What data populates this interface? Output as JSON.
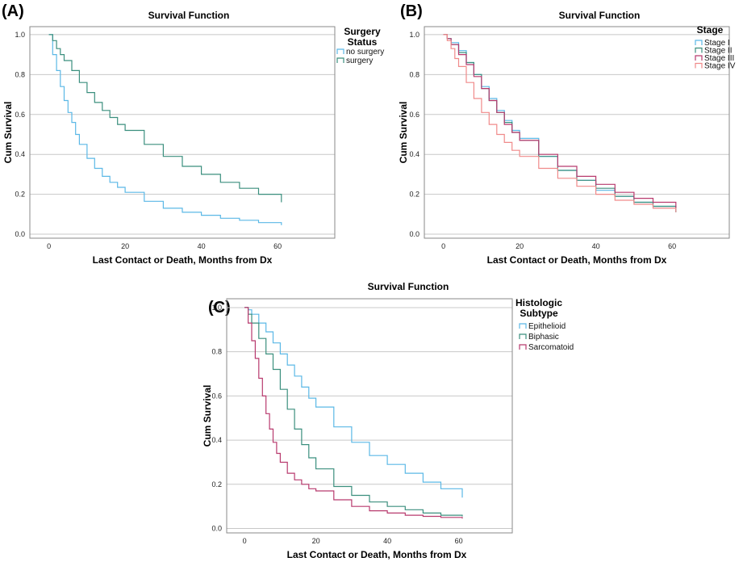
{
  "chart_data": [
    {
      "type": "line",
      "step": true,
      "panel_label": "(A)",
      "title": "Survival Function",
      "xlabel": "Last Contact or Death, Months from Dx",
      "ylabel": "Cum Survival",
      "xlim": [
        -5,
        75
      ],
      "ylim": [
        -0.02,
        1.04
      ],
      "x_ticks": [
        0,
        20,
        40,
        60
      ],
      "y_ticks": [
        0.0,
        0.2,
        0.4,
        0.6,
        0.8,
        1.0
      ],
      "y_tick_labels": [
        "0.0",
        "0.2",
        "0.4",
        "0.6",
        "0.8",
        "1.0"
      ],
      "grid": "horizontal",
      "legend_title": [
        "Surgery",
        "Status"
      ],
      "legend_position": "top-right-outside",
      "series": [
        {
          "name": "no surgery",
          "color": "#5bb8e6",
          "x": [
            0,
            1,
            2,
            3,
            4,
            5,
            6,
            7,
            8,
            10,
            12,
            14,
            16,
            18,
            20,
            25,
            30,
            35,
            40,
            45,
            50,
            55,
            61
          ],
          "y": [
            1.0,
            0.9,
            0.82,
            0.74,
            0.67,
            0.61,
            0.56,
            0.5,
            0.45,
            0.38,
            0.33,
            0.29,
            0.26,
            0.235,
            0.21,
            0.165,
            0.13,
            0.11,
            0.095,
            0.08,
            0.07,
            0.058,
            0.045
          ]
        },
        {
          "name": "surgery",
          "color": "#3b8f7e",
          "x": [
            0,
            1,
            2,
            3,
            4,
            6,
            8,
            10,
            12,
            14,
            16,
            18,
            20,
            25,
            30,
            35,
            40,
            45,
            50,
            55,
            61
          ],
          "y": [
            1.0,
            0.97,
            0.93,
            0.9,
            0.87,
            0.82,
            0.76,
            0.71,
            0.66,
            0.62,
            0.585,
            0.55,
            0.52,
            0.45,
            0.39,
            0.34,
            0.3,
            0.26,
            0.23,
            0.2,
            0.16
          ]
        }
      ]
    },
    {
      "type": "line",
      "step": true,
      "panel_label": "(B)",
      "title": "Survival Function",
      "xlabel": "Last Contact or Death, Months from Dx",
      "ylabel": "Cum Survival",
      "xlim": [
        -5,
        75
      ],
      "ylim": [
        -0.02,
        1.04
      ],
      "x_ticks": [
        0,
        20,
        40,
        60
      ],
      "y_ticks": [
        0.0,
        0.2,
        0.4,
        0.6,
        0.8,
        1.0
      ],
      "y_tick_labels": [
        "0.0",
        "0.2",
        "0.4",
        "0.6",
        "0.8",
        "1.0"
      ],
      "grid": "horizontal",
      "legend_title": [
        "Stage"
      ],
      "legend_position": "top-right",
      "series": [
        {
          "name": "Stage I",
          "color": "#5bb8e6",
          "x": [
            0,
            1,
            2,
            4,
            6,
            8,
            10,
            12,
            14,
            16,
            18,
            20,
            25,
            30,
            35,
            40,
            45,
            50,
            55,
            61
          ],
          "y": [
            1.0,
            0.98,
            0.96,
            0.92,
            0.86,
            0.8,
            0.74,
            0.68,
            0.62,
            0.57,
            0.52,
            0.48,
            0.39,
            0.32,
            0.27,
            0.22,
            0.19,
            0.16,
            0.14,
            0.11
          ]
        },
        {
          "name": "Stage II",
          "color": "#3b8f7e",
          "x": [
            0,
            1,
            2,
            4,
            6,
            8,
            10,
            12,
            14,
            16,
            18,
            20,
            25,
            30,
            35,
            40,
            45,
            50,
            55,
            61
          ],
          "y": [
            1.0,
            0.98,
            0.95,
            0.91,
            0.86,
            0.8,
            0.73,
            0.67,
            0.61,
            0.56,
            0.51,
            0.47,
            0.39,
            0.32,
            0.27,
            0.23,
            0.19,
            0.16,
            0.14,
            0.11
          ]
        },
        {
          "name": "Stage III",
          "color": "#b83a6e",
          "x": [
            0,
            1,
            2,
            4,
            6,
            8,
            10,
            12,
            14,
            16,
            18,
            20,
            25,
            30,
            35,
            40,
            45,
            50,
            55,
            61
          ],
          "y": [
            1.0,
            0.98,
            0.95,
            0.9,
            0.85,
            0.79,
            0.73,
            0.67,
            0.61,
            0.55,
            0.51,
            0.47,
            0.4,
            0.34,
            0.29,
            0.25,
            0.21,
            0.18,
            0.16,
            0.13
          ]
        },
        {
          "name": "Stage IV",
          "color": "#f08a8a",
          "x": [
            0,
            1,
            2,
            3,
            4,
            6,
            8,
            10,
            12,
            14,
            16,
            18,
            20,
            25,
            30,
            35,
            40,
            45,
            50,
            55,
            61
          ],
          "y": [
            1.0,
            0.97,
            0.93,
            0.88,
            0.84,
            0.76,
            0.68,
            0.61,
            0.55,
            0.5,
            0.46,
            0.42,
            0.39,
            0.33,
            0.28,
            0.24,
            0.2,
            0.17,
            0.15,
            0.13,
            0.11
          ]
        }
      ]
    },
    {
      "type": "line",
      "step": true,
      "panel_label": "(C)",
      "title": "Survival Function",
      "xlabel": "Last Contact or Death, Months from Dx",
      "ylabel": "Cum Survival",
      "xlim": [
        -5,
        75
      ],
      "ylim": [
        -0.02,
        1.04
      ],
      "x_ticks": [
        0,
        20,
        40,
        60
      ],
      "y_ticks": [
        0.0,
        0.2,
        0.4,
        0.6,
        0.8,
        1.0
      ],
      "y_tick_labels": [
        "0.0",
        "0.2",
        "0.4",
        "0.6",
        "0.8",
        "1.0"
      ],
      "grid": "horizontal",
      "legend_title": [
        "Histologic",
        "Subtype"
      ],
      "legend_position": "top-right-outside",
      "series": [
        {
          "name": "Epithelioid",
          "color": "#5bb8e6",
          "x": [
            0,
            1,
            2,
            4,
            6,
            8,
            10,
            12,
            14,
            16,
            18,
            20,
            25,
            30,
            35,
            40,
            45,
            50,
            55,
            61
          ],
          "y": [
            1.0,
            0.99,
            0.97,
            0.93,
            0.89,
            0.84,
            0.79,
            0.74,
            0.69,
            0.64,
            0.59,
            0.55,
            0.46,
            0.39,
            0.33,
            0.29,
            0.25,
            0.21,
            0.18,
            0.14
          ]
        },
        {
          "name": "Biphasic",
          "color": "#3b8f7e",
          "x": [
            0,
            1,
            2,
            4,
            6,
            8,
            10,
            12,
            14,
            16,
            18,
            20,
            25,
            30,
            35,
            40,
            45,
            50,
            55,
            61
          ],
          "y": [
            1.0,
            0.97,
            0.93,
            0.86,
            0.79,
            0.72,
            0.63,
            0.54,
            0.45,
            0.38,
            0.32,
            0.27,
            0.19,
            0.15,
            0.12,
            0.1,
            0.085,
            0.07,
            0.06,
            0.055
          ]
        },
        {
          "name": "Sarcomatoid",
          "color": "#b83a6e",
          "x": [
            0,
            1,
            2,
            3,
            4,
            5,
            6,
            7,
            8,
            9,
            10,
            12,
            14,
            16,
            18,
            20,
            25,
            30,
            35,
            40,
            45,
            50,
            55,
            61
          ],
          "y": [
            1.0,
            0.93,
            0.85,
            0.77,
            0.68,
            0.6,
            0.52,
            0.45,
            0.39,
            0.34,
            0.3,
            0.25,
            0.22,
            0.2,
            0.18,
            0.17,
            0.13,
            0.1,
            0.08,
            0.07,
            0.06,
            0.055,
            0.05,
            0.045
          ]
        }
      ]
    }
  ]
}
